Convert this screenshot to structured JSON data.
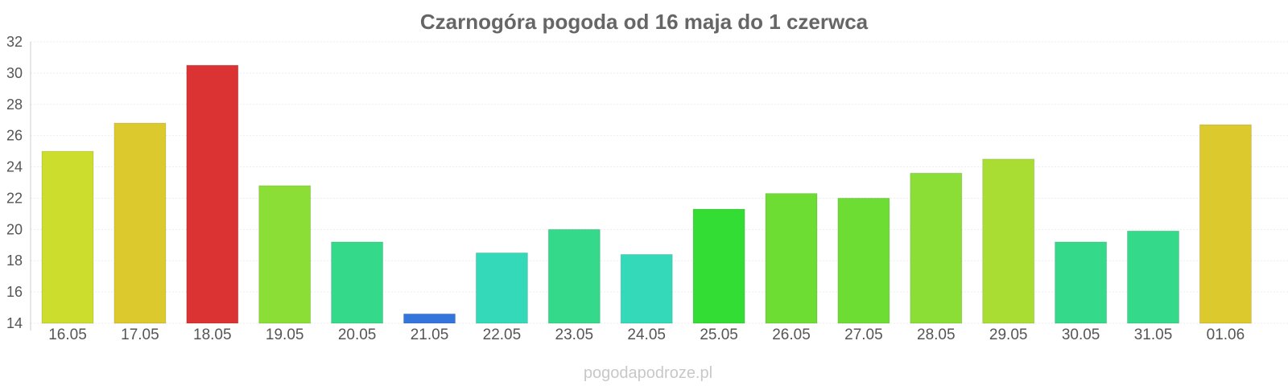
{
  "chart_data": {
    "type": "bar",
    "title": "Czarnogóra pogoda od 16 maja do 1 czerwca",
    "xlabel": "",
    "ylabel": "",
    "ylim": [
      14,
      32
    ],
    "yticks": [
      14,
      16,
      18,
      20,
      22,
      24,
      26,
      28,
      30,
      32
    ],
    "grid": true,
    "categories": [
      "16.05",
      "17.05",
      "18.05",
      "19.05",
      "20.05",
      "21.05",
      "22.05",
      "23.05",
      "24.05",
      "25.05",
      "26.05",
      "27.05",
      "28.05",
      "29.05",
      "30.05",
      "31.05",
      "01.06"
    ],
    "values": [
      25.0,
      26.8,
      30.5,
      22.8,
      19.2,
      14.6,
      18.5,
      20.0,
      18.4,
      21.3,
      22.3,
      22.0,
      23.6,
      24.5,
      19.2,
      19.9,
      26.7
    ],
    "colors": [
      "#cddd2e",
      "#dbc92e",
      "#db3333",
      "#8bde36",
      "#34d98a",
      "#3475db",
      "#34d9b9",
      "#34d98a",
      "#34d9b9",
      "#34dd34",
      "#6ddd34",
      "#6ddd34",
      "#8bde36",
      "#a9dd34",
      "#34d98a",
      "#34d98a",
      "#dbc92e"
    ]
  },
  "watermark": "pogodapodroze.pl"
}
